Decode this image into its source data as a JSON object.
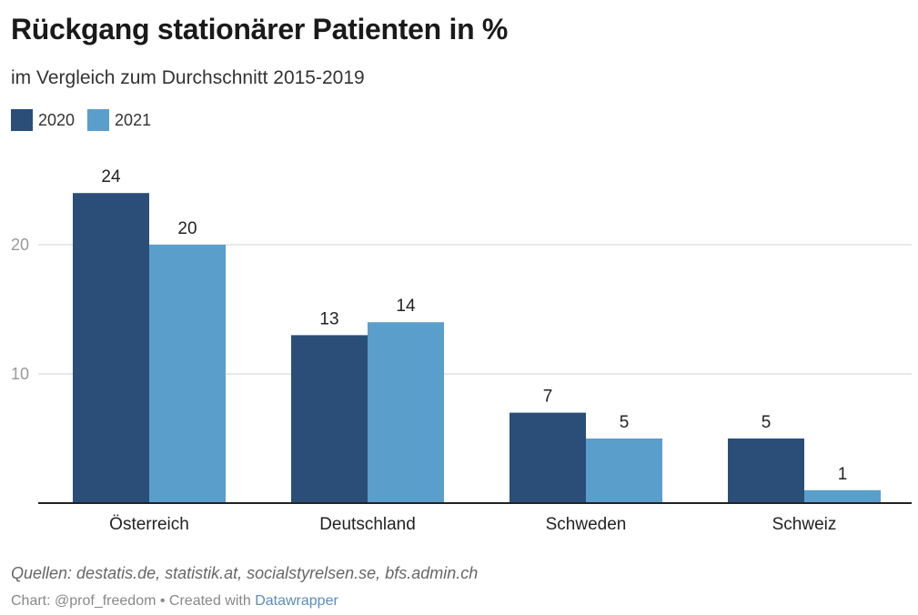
{
  "chart_data": {
    "type": "bar",
    "title": "Rückgang stationärer Patienten in %",
    "subtitle": "im Vergleich zum Durchschnitt 2015-2019",
    "categories": [
      "Österreich",
      "Deutschland",
      "Schweden",
      "Schweiz"
    ],
    "series": [
      {
        "name": "2020",
        "color": "#2a4e78",
        "values": [
          24,
          13,
          7,
          5
        ]
      },
      {
        "name": "2021",
        "color": "#5a9ecb",
        "values": [
          20,
          14,
          5,
          1
        ]
      }
    ],
    "yticks": [
      10,
      20
    ],
    "ylim": [
      0,
      25
    ],
    "grid": true,
    "legend_position": "top-left"
  },
  "footer": {
    "source": "Quellen: destatis.de, statistik.at, socialstyrelsen.se, bfs.admin.ch",
    "credit_prefix": "Chart: @prof_freedom • Created with ",
    "credit_link": "Datawrapper"
  }
}
